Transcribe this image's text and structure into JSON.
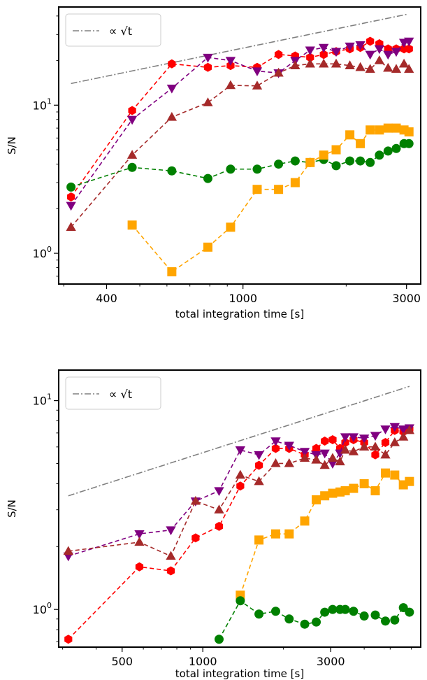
{
  "chart_data": [
    {
      "type": "line",
      "xlabel": "total integration time [s]",
      "ylabel": "S/N",
      "xscale": "log",
      "yscale": "log",
      "xlim": [
        290,
        3300
      ],
      "ylim": [
        0.62,
        46
      ],
      "xticks": [
        {
          "value": 400,
          "label": "400"
        },
        {
          "value": 1000,
          "label": "1000"
        },
        {
          "value": 3000,
          "label": "3000"
        }
      ],
      "yticks": [
        {
          "value": 1,
          "base": "10",
          "exp": "0"
        },
        {
          "value": 10,
          "base": "10",
          "exp": "1"
        }
      ],
      "legend": {
        "placement": "top-left",
        "label": "∝ √t"
      },
      "reference": {
        "name": "∝ √t",
        "color": "#808080",
        "style": "dashdot",
        "points": [
          [
            315,
            14
          ],
          [
            3000,
            41
          ]
        ]
      },
      "series": [
        {
          "color": "#ff0000",
          "marker": "hexagon",
          "points": [
            [
              315,
              2.4
            ],
            [
              475,
              9.2
            ],
            [
              620,
              19
            ],
            [
              790,
              18
            ],
            [
              920,
              18.5
            ],
            [
              1100,
              18
            ],
            [
              1270,
              22
            ],
            [
              1420,
              21.5
            ],
            [
              1570,
              21
            ],
            [
              1720,
              22
            ],
            [
              1870,
              23
            ],
            [
              2050,
              24
            ],
            [
              2200,
              24.5
            ],
            [
              2350,
              27
            ],
            [
              2500,
              26
            ],
            [
              2650,
              24
            ],
            [
              2800,
              24
            ],
            [
              2950,
              24
            ],
            [
              3050,
              24
            ]
          ]
        },
        {
          "color": "#800080",
          "marker": "triangle_down",
          "points": [
            [
              315,
              2.1
            ],
            [
              475,
              8
            ],
            [
              620,
              13
            ],
            [
              790,
              21
            ],
            [
              920,
              20
            ],
            [
              1100,
              17
            ],
            [
              1270,
              16.5
            ],
            [
              1420,
              20
            ],
            [
              1570,
              23.5
            ],
            [
              1720,
              24.5
            ],
            [
              1870,
              23
            ],
            [
              2050,
              25
            ],
            [
              2200,
              25.5
            ],
            [
              2350,
              22
            ],
            [
              2500,
              24
            ],
            [
              2650,
              22
            ],
            [
              2800,
              23
            ],
            [
              2950,
              26.5
            ],
            [
              3050,
              27
            ]
          ]
        },
        {
          "color": "#a52a2a",
          "marker": "triangle_up",
          "points": [
            [
              315,
              1.5
            ],
            [
              475,
              4.6
            ],
            [
              620,
              8.3
            ],
            [
              790,
              10.4
            ],
            [
              920,
              13.6
            ],
            [
              1100,
              13.5
            ],
            [
              1270,
              16.5
            ],
            [
              1420,
              18.5
            ],
            [
              1570,
              19
            ],
            [
              1720,
              19
            ],
            [
              1870,
              19
            ],
            [
              2050,
              18.5
            ],
            [
              2200,
              18
            ],
            [
              2350,
              17.5
            ],
            [
              2500,
              20
            ],
            [
              2650,
              17.8
            ],
            [
              2800,
              17.5
            ],
            [
              2950,
              19
            ],
            [
              3050,
              17.5
            ]
          ]
        },
        {
          "color": "#008000",
          "marker": "circle",
          "points": [
            [
              315,
              2.8
            ],
            [
              475,
              3.8
            ],
            [
              620,
              3.6
            ],
            [
              790,
              3.2
            ],
            [
              920,
              3.7
            ],
            [
              1100,
              3.7
            ],
            [
              1270,
              4.0
            ],
            [
              1420,
              4.2
            ],
            [
              1570,
              4.1
            ],
            [
              1720,
              4.3
            ],
            [
              1870,
              3.9
            ],
            [
              2050,
              4.2
            ],
            [
              2200,
              4.2
            ],
            [
              2350,
              4.1
            ],
            [
              2500,
              4.6
            ],
            [
              2650,
              4.9
            ],
            [
              2800,
              5.1
            ],
            [
              2950,
              5.5
            ],
            [
              3050,
              5.5
            ]
          ]
        },
        {
          "color": "#ffa500",
          "marker": "square",
          "points": [
            [
              475,
              1.55
            ],
            [
              620,
              0.75
            ],
            [
              790,
              1.1
            ],
            [
              920,
              1.5
            ],
            [
              1100,
              2.7
            ],
            [
              1270,
              2.7
            ],
            [
              1420,
              3.0
            ],
            [
              1570,
              4.1
            ],
            [
              1720,
              4.6
            ],
            [
              1870,
              5.0
            ],
            [
              2050,
              6.3
            ],
            [
              2200,
              5.5
            ],
            [
              2350,
              6.8
            ],
            [
              2500,
              6.8
            ],
            [
              2650,
              7.0
            ],
            [
              2800,
              7.0
            ],
            [
              2950,
              6.8
            ],
            [
              3050,
              6.6
            ]
          ]
        }
      ]
    },
    {
      "type": "line",
      "xlabel": "total integration time [s]",
      "ylabel": "S/N",
      "xscale": "log",
      "yscale": "log",
      "xlim": [
        290,
        6500
      ],
      "ylim": [
        0.66,
        14
      ],
      "xticks": [
        {
          "value": 500,
          "label": "500"
        },
        {
          "value": 1000,
          "label": "1000"
        },
        {
          "value": 3000,
          "label": "3000"
        }
      ],
      "yticks": [
        {
          "value": 1,
          "base": "10",
          "exp": "0"
        },
        {
          "value": 10,
          "base": "10",
          "exp": "1"
        }
      ],
      "legend": {
        "placement": "top-left",
        "label": "∝ √t"
      },
      "reference": {
        "name": "∝ √t",
        "color": "#808080",
        "style": "dashdot",
        "points": [
          [
            315,
            3.5
          ],
          [
            5900,
            11.7
          ]
        ]
      },
      "series": [
        {
          "color": "#ff0000",
          "marker": "hexagon",
          "points": [
            [
              315,
              0.72
            ],
            [
              580,
              1.6
            ],
            [
              760,
              1.53
            ],
            [
              940,
              2.2
            ],
            [
              1150,
              2.5
            ],
            [
              1380,
              3.9
            ],
            [
              1620,
              4.9
            ],
            [
              1870,
              5.9
            ],
            [
              2100,
              5.9
            ],
            [
              2400,
              5.5
            ],
            [
              2650,
              5.9
            ],
            [
              2850,
              6.4
            ],
            [
              3050,
              6.5
            ],
            [
              3250,
              5.9
            ],
            [
              3400,
              6.3
            ],
            [
              3650,
              6.5
            ],
            [
              4000,
              6.3
            ],
            [
              4400,
              5.5
            ],
            [
              4800,
              6.3
            ],
            [
              5200,
              7.2
            ],
            [
              5600,
              7.1
            ],
            [
              5900,
              7.3
            ]
          ]
        },
        {
          "color": "#800080",
          "marker": "triangle_down",
          "points": [
            [
              315,
              1.8
            ],
            [
              580,
              2.3
            ],
            [
              760,
              2.4
            ],
            [
              940,
              3.3
            ],
            [
              1150,
              3.7
            ],
            [
              1380,
              5.8
            ],
            [
              1620,
              5.5
            ],
            [
              1870,
              6.4
            ],
            [
              2100,
              6.1
            ],
            [
              2400,
              5.7
            ],
            [
              2650,
              5.5
            ],
            [
              2850,
              5.6
            ],
            [
              3050,
              5.0
            ],
            [
              3250,
              5.6
            ],
            [
              3400,
              6.7
            ],
            [
              3650,
              6.7
            ],
            [
              4000,
              6.6
            ],
            [
              4400,
              6.8
            ],
            [
              4800,
              7.3
            ],
            [
              5200,
              7.5
            ],
            [
              5600,
              7.3
            ],
            [
              5900,
              7.4
            ]
          ]
        },
        {
          "color": "#a52a2a",
          "marker": "triangle_up",
          "points": [
            [
              315,
              1.9
            ],
            [
              580,
              2.1
            ],
            [
              760,
              1.8
            ],
            [
              940,
              3.3
            ],
            [
              1150,
              3.0
            ],
            [
              1380,
              4.4
            ],
            [
              1620,
              4.1
            ],
            [
              1870,
              5.0
            ],
            [
              2100,
              5.0
            ],
            [
              2400,
              5.3
            ],
            [
              2650,
              5.2
            ],
            [
              2850,
              4.9
            ],
            [
              3050,
              5.3
            ],
            [
              3250,
              5.1
            ],
            [
              3400,
              5.8
            ],
            [
              3650,
              5.7
            ],
            [
              4000,
              6.0
            ],
            [
              4400,
              6.0
            ],
            [
              4800,
              5.5
            ],
            [
              5200,
              6.3
            ],
            [
              5600,
              6.7
            ],
            [
              5900,
              7.2
            ]
          ]
        },
        {
          "color": "#ffa500",
          "marker": "square",
          "points": [
            [
              1380,
              1.17
            ],
            [
              1620,
              2.15
            ],
            [
              1870,
              2.3
            ],
            [
              2100,
              2.3
            ],
            [
              2400,
              2.65
            ],
            [
              2650,
              3.35
            ],
            [
              2850,
              3.5
            ],
            [
              3050,
              3.6
            ],
            [
              3250,
              3.65
            ],
            [
              3400,
              3.7
            ],
            [
              3650,
              3.8
            ],
            [
              4000,
              4.0
            ],
            [
              4400,
              3.7
            ],
            [
              4800,
              4.5
            ],
            [
              5200,
              4.4
            ],
            [
              5600,
              3.95
            ],
            [
              5900,
              4.1
            ]
          ]
        },
        {
          "color": "#008000",
          "marker": "circle",
          "points": [
            [
              1150,
              0.72
            ],
            [
              1380,
              1.1
            ],
            [
              1620,
              0.95
            ],
            [
              1870,
              0.98
            ],
            [
              2100,
              0.9
            ],
            [
              2400,
              0.85
            ],
            [
              2650,
              0.87
            ],
            [
              2850,
              0.97
            ],
            [
              3050,
              1.0
            ],
            [
              3250,
              1.0
            ],
            [
              3400,
              1.0
            ],
            [
              3650,
              0.98
            ],
            [
              4000,
              0.93
            ],
            [
              4400,
              0.94
            ],
            [
              4800,
              0.88
            ],
            [
              5200,
              0.89
            ],
            [
              5600,
              1.02
            ],
            [
              5900,
              0.97
            ]
          ]
        }
      ]
    }
  ]
}
